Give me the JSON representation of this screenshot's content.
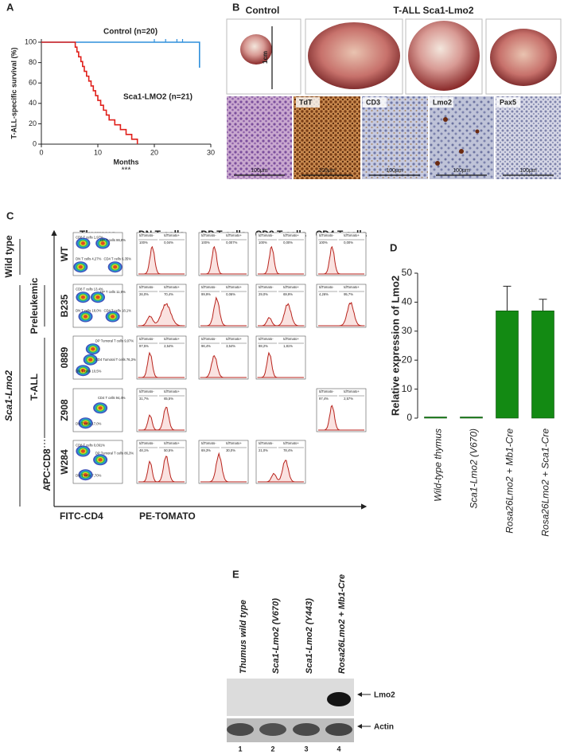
{
  "panel_labels": [
    "A",
    "B",
    "C",
    "D",
    "E"
  ],
  "chart_data": [
    {
      "type": "line",
      "step": true,
      "xlabel": "Months",
      "ylabel": "T-ALL-specific survival (%)",
      "annotation": "***",
      "xlim": [
        0,
        30
      ],
      "xticks": [
        0,
        10,
        20,
        30
      ],
      "ylim": [
        0,
        100
      ],
      "yticks": [
        0,
        20,
        40,
        60,
        80,
        100
      ],
      "series": [
        {
          "name": "Control (n=20)",
          "color": "#2f8fdc",
          "x": [
            0,
            28,
            28
          ],
          "values": [
            100,
            100,
            75
          ],
          "censored": [
            20,
            22,
            24,
            25
          ]
        },
        {
          "name": "Sca1-LMO2 (n=21)",
          "color": "#e0201b",
          "x": [
            0,
            6,
            6,
            6.3,
            6.3,
            6.6,
            6.6,
            7,
            7,
            7.3,
            7.3,
            7.6,
            7.6,
            8,
            8,
            8.4,
            8.4,
            8.8,
            8.8,
            9.2,
            9.2,
            9.6,
            9.6,
            10,
            10,
            10.5,
            10.5,
            11,
            11,
            11.5,
            11.5,
            12,
            12,
            13,
            13,
            14,
            14,
            15,
            15,
            16,
            16,
            17,
            17
          ],
          "values": [
            100,
            100,
            95.2,
            95.2,
            90.5,
            90.5,
            85.7,
            85.7,
            81,
            81,
            76.2,
            76.2,
            71.4,
            71.4,
            66.7,
            66.7,
            61.9,
            61.9,
            57.1,
            57.1,
            52.4,
            52.4,
            47.6,
            47.6,
            42.9,
            42.9,
            38.1,
            38.1,
            33.3,
            33.3,
            28.6,
            28.6,
            23.8,
            23.8,
            19,
            19,
            14.3,
            14.3,
            9.5,
            9.5,
            4.8,
            4.8,
            0
          ]
        }
      ]
    },
    {
      "type": "bar",
      "ylabel": "Relative expression of Lmo2",
      "color": "#138a13",
      "categories": [
        "Wild-type thymus",
        "Sca1-Lmo2 (V670)",
        "Rosa26Lmo2 + Mb1-Cre",
        "Rosa26Lmo2 + Sca1-Cre"
      ],
      "values": [
        0.4,
        0.4,
        37,
        37
      ],
      "errors": [
        0,
        0,
        8.5,
        4
      ],
      "ylim": [
        0,
        50
      ],
      "yticks": [
        0,
        10,
        20,
        30,
        40,
        50
      ]
    }
  ],
  "panel_b": {
    "control": "Control",
    "tall": "T-ALL Sca1-Lmo2",
    "scale_cm": "1cm",
    "stains": [
      "TdT",
      "CD3",
      "Lmo2",
      "Pax5"
    ],
    "scale_um": "100μm"
  },
  "panel_c": {
    "columns": [
      "Thymus",
      "DN T cells",
      "DP T cells",
      "CD8 T cells",
      "CD4 T cells"
    ],
    "gate_labels": [
      "tdTomato-",
      "tdTomato+"
    ],
    "groups": [
      "Wild type",
      "Preleukemic",
      "Sca1-Lmo2",
      "T-ALL"
    ],
    "y_axis": "APC-CD8",
    "x_axis_thymus": "FITC-CD4",
    "x_axis_hist": "PE-TOMATO",
    "rows": [
      {
        "label": "WT",
        "thymus": [
          "CD8 T cells 1,97%",
          "DP T cells 86,8%",
          "DN T cells 4,27%",
          "CD4 T cells 6,35%"
        ],
        "hist": [
          [
            "100%",
            "0,04%"
          ],
          [
            "100%",
            "0,007%"
          ],
          [
            "100%",
            "0,00%"
          ],
          [
            "100%",
            "0,00%"
          ]
        ]
      },
      {
        "label": "B235",
        "thymus": [
          "CD8 T cells 13,4%",
          "DP T cells 11,9%",
          "DN T cells 18,0%",
          "CD4 T cells 18,1%"
        ],
        "hist": [
          [
            "26,0%",
            "70,4%"
          ],
          [
            "99,9%",
            "0,06%"
          ],
          [
            "29,0%",
            "69,9%"
          ],
          [
            "4,26%",
            "95,7%"
          ]
        ]
      },
      {
        "label": "0889",
        "thymus": [
          "DP Tumoral T cells 9,07%",
          "CD4 Tumoral T cells 76,3%",
          "DN T cells 10,5%"
        ],
        "hist": [
          [
            "97,5%",
            "2,54%"
          ],
          [
            "96,4%",
            "3,54%"
          ],
          [
            "98,2%",
            "1,81%"
          ],
          null
        ]
      },
      {
        "label": "Z908",
        "thymus": [
          "CD4 T cells 94,4%",
          "DN T cells 17,0%"
        ],
        "hist": [
          [
            "31,7%",
            "65,5%"
          ],
          null,
          null,
          [
            "97,4%",
            "2,57%"
          ]
        ]
      },
      {
        "label": "W284",
        "thymus": [
          "CD8 T cells 0,091%",
          "DP Tumoral T cells 86,3%",
          "DN T cells 7,70%"
        ],
        "hist": [
          [
            "48,1%",
            "50,5%"
          ],
          [
            "69,3%",
            "30,0%"
          ],
          [
            "21,0%",
            "78,4%"
          ],
          null
        ]
      }
    ]
  },
  "panel_e": {
    "lanes": [
      "Thumus wild type",
      "Sca1-Lmo2 (V670)",
      "Sca1-Lmo2 (Y443)",
      "Rosa26Lmo2 + Mb1-Cre"
    ],
    "lane_numbers": [
      "1",
      "2",
      "3",
      "4"
    ],
    "bands": [
      "Lmo2",
      "Actin"
    ]
  }
}
